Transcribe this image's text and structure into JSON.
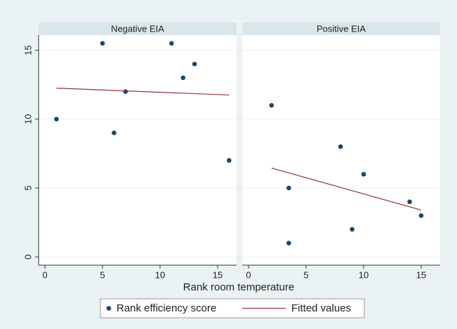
{
  "chart_data": {
    "type": "scatter",
    "xlabel": "Rank room temperature",
    "xlim": [
      -0.55,
      16.65
    ],
    "ylim": [
      -0.6,
      16.1
    ],
    "xticks": [
      0,
      5,
      10,
      15
    ],
    "yticks": [
      0,
      5,
      10,
      15
    ],
    "grid": true,
    "series": [
      {
        "name": "Rank efficiency score",
        "color": "#1a476f"
      },
      {
        "name": "Fitted values",
        "color": "#90353b"
      }
    ],
    "panels": [
      {
        "title": "Negative EIA",
        "points": {
          "x": [
            1,
            5,
            11,
            13,
            12,
            7,
            6,
            16
          ],
          "y": [
            10,
            15.5,
            15.5,
            14,
            13,
            12,
            9,
            7
          ]
        },
        "fit": {
          "x": [
            1,
            16
          ],
          "y": [
            12.25,
            11.75
          ]
        }
      },
      {
        "title": "Positive EIA",
        "points": {
          "x": [
            2,
            3.5,
            3.5,
            8,
            10,
            9,
            14,
            15
          ],
          "y": [
            11,
            5,
            1,
            8,
            6,
            2,
            4,
            3
          ]
        },
        "fit": {
          "x": [
            2,
            15
          ],
          "y": [
            6.45,
            3.4
          ]
        }
      }
    ]
  }
}
